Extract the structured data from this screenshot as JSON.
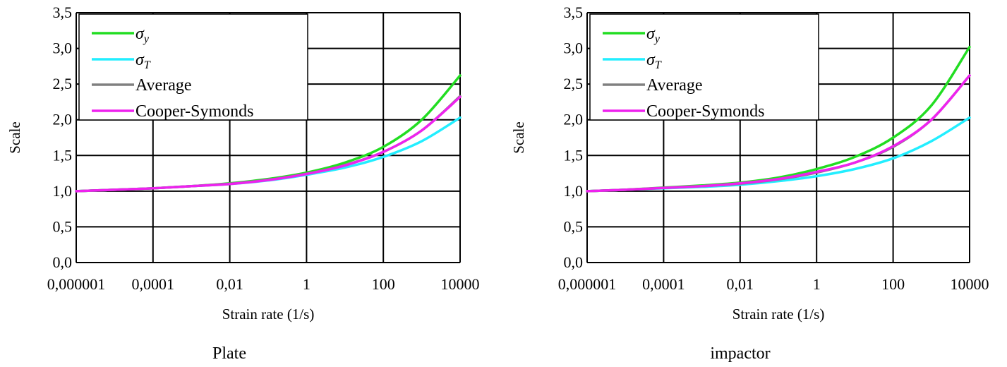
{
  "chart_data": [
    {
      "type": "line",
      "caption": "Plate",
      "xlabel": "Strain rate (1/s)",
      "ylabel": "Scale",
      "x_scale": "log",
      "xlim": [
        1e-06,
        10000
      ],
      "ylim": [
        0,
        3.5
      ],
      "x_ticks": [
        "0,000001",
        "0,0001",
        "0,01",
        "1",
        "100",
        "10000"
      ],
      "y_ticks": [
        "0,0",
        "0,5",
        "1,0",
        "1,5",
        "2,0",
        "2,5",
        "3,0",
        "3,5"
      ],
      "grid": true,
      "legend_placement": "top-left",
      "x": [
        1e-06,
        1e-05,
        0.0001,
        0.001,
        0.01,
        0.1,
        1,
        10,
        100,
        1000,
        10000
      ],
      "series": [
        {
          "name": "σy",
          "color": "#22dd22",
          "values": [
            1.0,
            1.02,
            1.04,
            1.07,
            1.11,
            1.17,
            1.26,
            1.4,
            1.62,
            2.0,
            2.62
          ]
        },
        {
          "name": "σT",
          "color": "#22eeff",
          "values": [
            1.0,
            1.02,
            1.04,
            1.07,
            1.1,
            1.15,
            1.23,
            1.33,
            1.48,
            1.7,
            2.03
          ]
        },
        {
          "name": "Average",
          "color": "#808080",
          "values": [
            1.0,
            1.02,
            1.04,
            1.07,
            1.105,
            1.16,
            1.245,
            1.365,
            1.55,
            1.85,
            2.33
          ]
        },
        {
          "name": "Cooper-Symonds",
          "color": "#ee22ee",
          "values": [
            1.0,
            1.02,
            1.04,
            1.07,
            1.1,
            1.155,
            1.24,
            1.36,
            1.55,
            1.85,
            2.32
          ]
        }
      ]
    },
    {
      "type": "line",
      "caption": "impactor",
      "xlabel": "Strain rate (1/s)",
      "ylabel": "Scale",
      "x_scale": "log",
      "xlim": [
        1e-06,
        10000
      ],
      "ylim": [
        0,
        3.5
      ],
      "x_ticks": [
        "0,000001",
        "0,0001",
        "0,01",
        "1",
        "100",
        "10000"
      ],
      "y_ticks": [
        "0,0",
        "0,5",
        "1,0",
        "1,5",
        "2,0",
        "2,5",
        "3,0",
        "3,5"
      ],
      "grid": true,
      "legend_placement": "top-left",
      "x": [
        1e-06,
        1e-05,
        0.0001,
        0.001,
        0.01,
        0.1,
        1,
        10,
        100,
        1000,
        10000
      ],
      "series": [
        {
          "name": "σy",
          "color": "#22dd22",
          "values": [
            1.0,
            1.02,
            1.05,
            1.08,
            1.12,
            1.19,
            1.31,
            1.48,
            1.75,
            2.2,
            3.02
          ]
        },
        {
          "name": "σT",
          "color": "#22eeff",
          "values": [
            1.0,
            1.02,
            1.04,
            1.06,
            1.09,
            1.14,
            1.21,
            1.31,
            1.46,
            1.7,
            2.03
          ]
        },
        {
          "name": "Average",
          "color": "#808080",
          "values": [
            1.0,
            1.02,
            1.045,
            1.07,
            1.105,
            1.165,
            1.26,
            1.4,
            1.62,
            2.0,
            2.62
          ]
        },
        {
          "name": "Cooper-Symonds",
          "color": "#ee22ee",
          "values": [
            1.0,
            1.02,
            1.045,
            1.07,
            1.11,
            1.17,
            1.27,
            1.4,
            1.63,
            2.0,
            2.62
          ]
        }
      ]
    }
  ]
}
